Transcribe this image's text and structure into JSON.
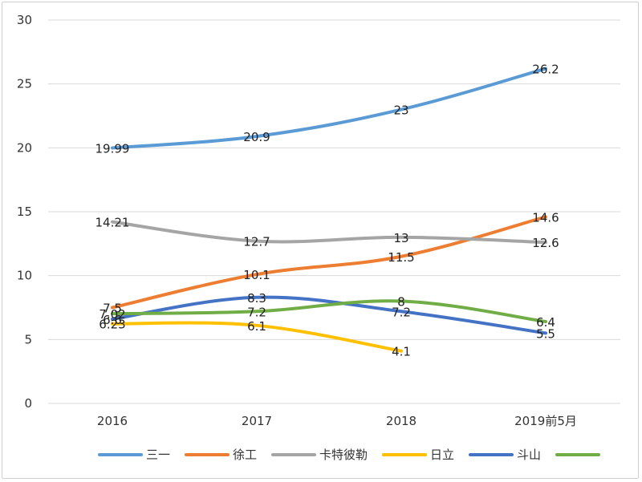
{
  "chart_data": {
    "type": "line",
    "categories": [
      "2016",
      "2017",
      "2018",
      "2019前5月"
    ],
    "ylim": [
      0,
      30
    ],
    "yticks": [
      0,
      5,
      10,
      15,
      20,
      25,
      30
    ],
    "grid": true,
    "legend_position": "bottom",
    "series": [
      {
        "name": "三一",
        "color": "#5b9bd5",
        "values": [
          19.99,
          20.9,
          23,
          26.2
        ]
      },
      {
        "name": "徐工",
        "color": "#ed7d31",
        "values": [
          7.5,
          10.1,
          11.5,
          14.6
        ]
      },
      {
        "name": "卡特彼勒",
        "color": "#a5a5a5",
        "values": [
          14.21,
          12.7,
          13,
          12.6
        ]
      },
      {
        "name": "日立",
        "color": "#ffc000",
        "values": [
          6.23,
          6.1,
          4.1,
          null
        ]
      },
      {
        "name": "斗山",
        "color": "#4472c4",
        "values": [
          6.6,
          8.3,
          7.2,
          5.5
        ]
      },
      {
        "name": "",
        "color": "#70ad47",
        "values": [
          7.02,
          7.2,
          8,
          6.4
        ]
      }
    ],
    "data_labels": [
      [
        "19.99",
        "20.9",
        "23",
        "26.2"
      ],
      [
        "7.5",
        "10.1",
        "11.5",
        "14.6"
      ],
      [
        "14.21",
        "12.7",
        "13",
        "12.6"
      ],
      [
        "6.23",
        "6.1",
        "4.1",
        ""
      ],
      [
        "6.6",
        "8.3",
        "7.2",
        "5.5"
      ],
      [
        "7.02",
        "7.2",
        "8",
        "6.4"
      ]
    ]
  }
}
